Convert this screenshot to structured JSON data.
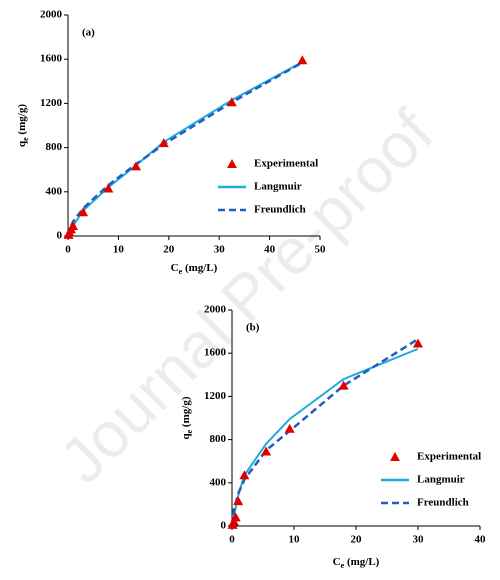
{
  "watermark": "Journal Pre-proof",
  "chart_data": [
    {
      "type": "line",
      "panel": "(a)",
      "xlabel": [
        "C",
        "e",
        " (mg/L)"
      ],
      "ylabel": [
        "q",
        "e",
        " (mg/g)"
      ],
      "xlim": [
        0,
        50
      ],
      "xticks": [
        0,
        10,
        20,
        30,
        40,
        50
      ],
      "ylim": [
        0,
        2000
      ],
      "yticks": [
        0,
        400,
        800,
        1200,
        1600,
        2000
      ],
      "grid": false,
      "series": [
        {
          "name": "Experimental",
          "style": "markers",
          "color": "#e00000",
          "x": [
            0.1,
            0.3,
            0.6,
            1,
            3,
            8,
            13.5,
            19,
            32.5,
            46.5
          ],
          "values": [
            10,
            30,
            60,
            90,
            215,
            430,
            630,
            840,
            1210,
            1590
          ]
        },
        {
          "name": "Langmuir",
          "style": "solid",
          "color": "#22aadd",
          "x": [
            0,
            1,
            3,
            8,
            13.5,
            19,
            32.5,
            46.5
          ],
          "values": [
            0,
            90,
            230,
            440,
            640,
            850,
            1230,
            1575
          ]
        },
        {
          "name": "Freundlich",
          "style": "dashed",
          "color": "#1f5fbf",
          "x": [
            0,
            0.5,
            1,
            3,
            8,
            13.5,
            19,
            32.5,
            46.5
          ],
          "values": [
            0,
            80,
            130,
            250,
            460,
            650,
            830,
            1210,
            1570
          ]
        }
      ]
    },
    {
      "type": "line",
      "panel": "(b)",
      "xlabel": [
        "C",
        "e",
        " (mg/L)"
      ],
      "ylabel": [
        "q",
        "e",
        " (mg/g)"
      ],
      "xlim": [
        0,
        40
      ],
      "xticks": [
        0,
        10,
        20,
        30,
        40
      ],
      "ylim": [
        0,
        2000
      ],
      "yticks": [
        0,
        400,
        800,
        1200,
        1600,
        2000
      ],
      "grid": false,
      "series": [
        {
          "name": "Experimental",
          "style": "markers",
          "color": "#e00000",
          "x": [
            0.1,
            0.3,
            0.6,
            1,
            2,
            5.5,
            9.3,
            18,
            30
          ],
          "values": [
            10,
            40,
            80,
            230,
            470,
            690,
            900,
            1300,
            1690
          ]
        },
        {
          "name": "Langmuir",
          "style": "solid",
          "color": "#22aadd",
          "x": [
            0,
            1,
            2,
            5.5,
            9.3,
            18,
            30
          ],
          "values": [
            0,
            280,
            470,
            760,
            990,
            1360,
            1640
          ]
        },
        {
          "name": "Freundlich",
          "style": "dashed",
          "color": "#1f5fbf",
          "x": [
            0,
            0.3,
            1,
            2,
            5.5,
            9.3,
            18,
            30
          ],
          "values": [
            0,
            150,
            300,
            430,
            700,
            880,
            1300,
            1730
          ]
        }
      ]
    }
  ]
}
